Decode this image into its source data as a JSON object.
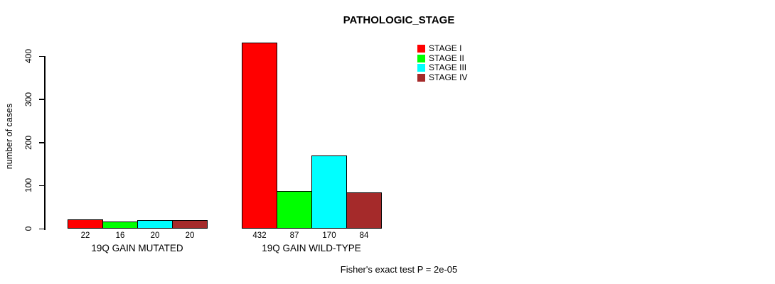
{
  "chart_data": {
    "type": "bar",
    "title": "PATHOLOGIC_STAGE",
    "ylabel": "number of cases",
    "ylim": [
      0,
      400
    ],
    "yticks": [
      0,
      100,
      200,
      300,
      400
    ],
    "categories": [
      "19Q GAIN MUTATED",
      "19Q GAIN WILD-TYPE"
    ],
    "series": [
      {
        "name": "STAGE I",
        "color": "#FF0000",
        "values": [
          22,
          432
        ]
      },
      {
        "name": "STAGE II",
        "color": "#00FF00",
        "values": [
          16,
          87
        ]
      },
      {
        "name": "STAGE III",
        "color": "#00FFFF",
        "values": [
          20,
          170
        ]
      },
      {
        "name": "STAGE IV",
        "color": "#A52A2A",
        "values": [
          20,
          84
        ]
      }
    ],
    "groups": [
      {
        "label": "19Q GAIN MUTATED",
        "values": [
          22,
          16,
          20,
          20
        ]
      },
      {
        "label": "19Q GAIN WILD-TYPE",
        "values": [
          432,
          87,
          170,
          84
        ]
      }
    ],
    "legend": [
      {
        "label": "STAGE I",
        "color": "#FF0000"
      },
      {
        "label": "STAGE II",
        "color": "#00FF00"
      },
      {
        "label": "STAGE III",
        "color": "#00FFFF"
      },
      {
        "label": "STAGE IV",
        "color": "#A52A2A"
      }
    ],
    "legend_position": "top-right",
    "grid": false,
    "axis_color": "#000000",
    "background_color": "#FFFFFF",
    "footnote": "Fisher's exact test P = 2e-05"
  }
}
